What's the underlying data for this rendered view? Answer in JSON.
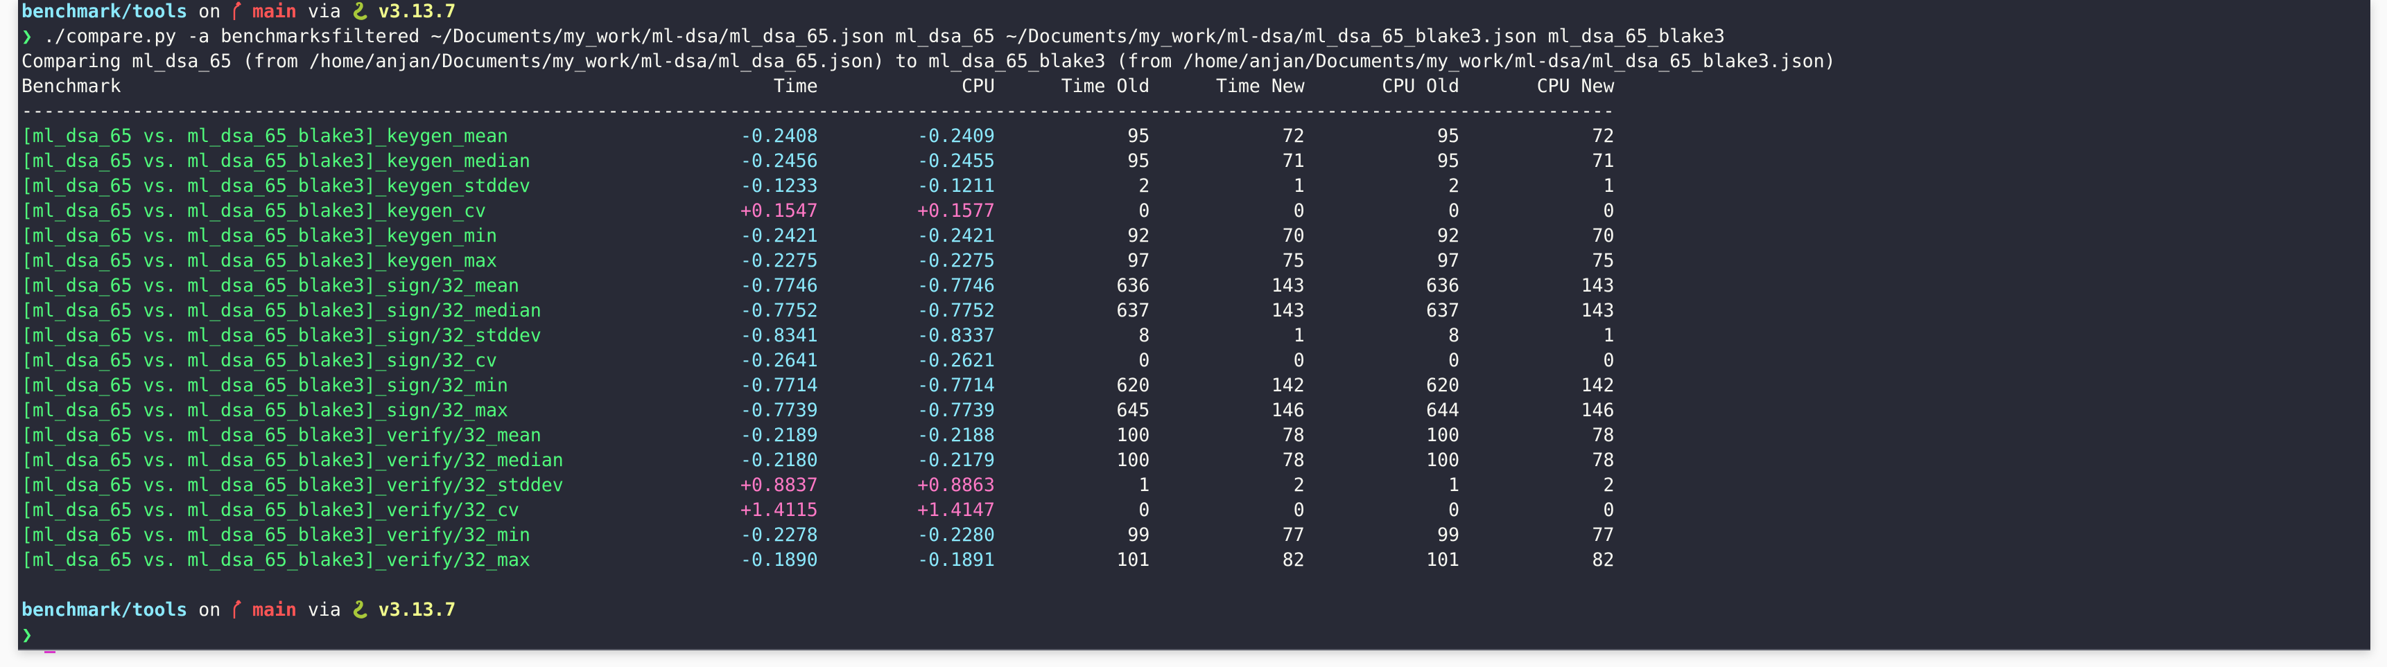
{
  "prompt": {
    "path": "benchmark/tools",
    "on": "on",
    "branch": "main",
    "via": "via",
    "python_version": "v3.13.7",
    "symbol": "❯",
    "branch_icon": "git-branch-icon",
    "python_icon": "python-snake-icon"
  },
  "command": "./compare.py -a benchmarksfiltered ~/Documents/my_work/ml-dsa/ml_dsa_65.json ml_dsa_65 ~/Documents/my_work/ml-dsa/ml_dsa_65_blake3.json ml_dsa_65_blake3",
  "comparing_line": "Comparing ml_dsa_65 (from /home/anjan/Documents/my_work/ml-dsa/ml_dsa_65.json) to ml_dsa_65_blake3 (from /home/anjan/Documents/my_work/ml-dsa/ml_dsa_65_blake3.json)",
  "table": {
    "headers": [
      "Benchmark",
      "Time",
      "CPU",
      "Time Old",
      "Time New",
      "CPU Old",
      "CPU New"
    ],
    "separator": "------------------------------------------------------------------------------------------------------------------------------------------------",
    "rows": [
      [
        "[ml_dsa_65 vs. ml_dsa_65_blake3]_keygen_mean",
        "-0.2408",
        "-0.2409",
        "95",
        "72",
        "95",
        "72"
      ],
      [
        "[ml_dsa_65 vs. ml_dsa_65_blake3]_keygen_median",
        "-0.2456",
        "-0.2455",
        "95",
        "71",
        "95",
        "71"
      ],
      [
        "[ml_dsa_65 vs. ml_dsa_65_blake3]_keygen_stddev",
        "-0.1233",
        "-0.1211",
        "2",
        "1",
        "2",
        "1"
      ],
      [
        "[ml_dsa_65 vs. ml_dsa_65_blake3]_keygen_cv",
        "+0.1547",
        "+0.1577",
        "0",
        "0",
        "0",
        "0"
      ],
      [
        "[ml_dsa_65 vs. ml_dsa_65_blake3]_keygen_min",
        "-0.2421",
        "-0.2421",
        "92",
        "70",
        "92",
        "70"
      ],
      [
        "[ml_dsa_65 vs. ml_dsa_65_blake3]_keygen_max",
        "-0.2275",
        "-0.2275",
        "97",
        "75",
        "97",
        "75"
      ],
      [
        "[ml_dsa_65 vs. ml_dsa_65_blake3]_sign/32_mean",
        "-0.7746",
        "-0.7746",
        "636",
        "143",
        "636",
        "143"
      ],
      [
        "[ml_dsa_65 vs. ml_dsa_65_blake3]_sign/32_median",
        "-0.7752",
        "-0.7752",
        "637",
        "143",
        "637",
        "143"
      ],
      [
        "[ml_dsa_65 vs. ml_dsa_65_blake3]_sign/32_stddev",
        "-0.8341",
        "-0.8337",
        "8",
        "1",
        "8",
        "1"
      ],
      [
        "[ml_dsa_65 vs. ml_dsa_65_blake3]_sign/32_cv",
        "-0.2641",
        "-0.2621",
        "0",
        "0",
        "0",
        "0"
      ],
      [
        "[ml_dsa_65 vs. ml_dsa_65_blake3]_sign/32_min",
        "-0.7714",
        "-0.7714",
        "620",
        "142",
        "620",
        "142"
      ],
      [
        "[ml_dsa_65 vs. ml_dsa_65_blake3]_sign/32_max",
        "-0.7739",
        "-0.7739",
        "645",
        "146",
        "644",
        "146"
      ],
      [
        "[ml_dsa_65 vs. ml_dsa_65_blake3]_verify/32_mean",
        "-0.2189",
        "-0.2188",
        "100",
        "78",
        "100",
        "78"
      ],
      [
        "[ml_dsa_65 vs. ml_dsa_65_blake3]_verify/32_median",
        "-0.2180",
        "-0.2179",
        "100",
        "78",
        "100",
        "78"
      ],
      [
        "[ml_dsa_65 vs. ml_dsa_65_blake3]_verify/32_stddev",
        "+0.8837",
        "+0.8863",
        "1",
        "2",
        "1",
        "2"
      ],
      [
        "[ml_dsa_65 vs. ml_dsa_65_blake3]_verify/32_cv",
        "+1.4115",
        "+1.4147",
        "0",
        "0",
        "0",
        "0"
      ],
      [
        "[ml_dsa_65 vs. ml_dsa_65_blake3]_verify/32_min",
        "-0.2278",
        "-0.2280",
        "99",
        "77",
        "99",
        "77"
      ],
      [
        "[ml_dsa_65 vs. ml_dsa_65_blake3]_verify/32_max",
        "-0.1890",
        "-0.1891",
        "101",
        "82",
        "101",
        "82"
      ]
    ]
  },
  "colors": {
    "background": "#282a36",
    "path": "#8be9fd",
    "branch": "#ff5555",
    "version": "#f1fa8c",
    "prompt_arrow": "#50fa7b",
    "benchmark_name": "#50fa7b",
    "improvement": "#8be9fd",
    "regression": "#ff79c6",
    "cursor": "#d633c8"
  }
}
